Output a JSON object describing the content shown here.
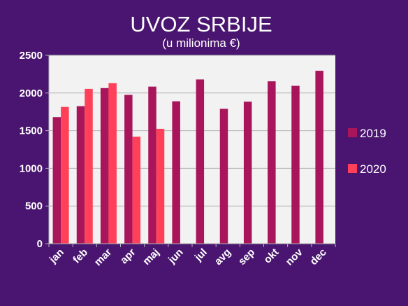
{
  "chart_data": {
    "type": "bar",
    "title": "UVOZ SRBIJE",
    "subtitle": "(u milionima €)",
    "categories": [
      "jan",
      "feb",
      "mar",
      "apr",
      "maj",
      "jun",
      "jul",
      "avg",
      "sep",
      "okt",
      "nov",
      "dec"
    ],
    "series": [
      {
        "name": "2019",
        "color": "#a8155a",
        "values": [
          1680,
          1825,
          2065,
          1975,
          2085,
          1890,
          2180,
          1790,
          1885,
          2155,
          2095,
          2295
        ]
      },
      {
        "name": "2020",
        "color": "#ff4058",
        "values": [
          1815,
          2055,
          2130,
          1420,
          1525,
          null,
          null,
          null,
          null,
          null,
          null,
          null
        ]
      }
    ],
    "ylim": [
      0,
      2500
    ],
    "yticks": [
      0,
      500,
      1000,
      1500,
      2000,
      2500
    ],
    "ytick_labels": [
      "0",
      "500",
      "1000",
      "1500",
      "2000",
      "2500"
    ],
    "grid": true,
    "legend_position": "right",
    "plot_background": "#f2f2f2",
    "page_background": "#4a1570"
  }
}
